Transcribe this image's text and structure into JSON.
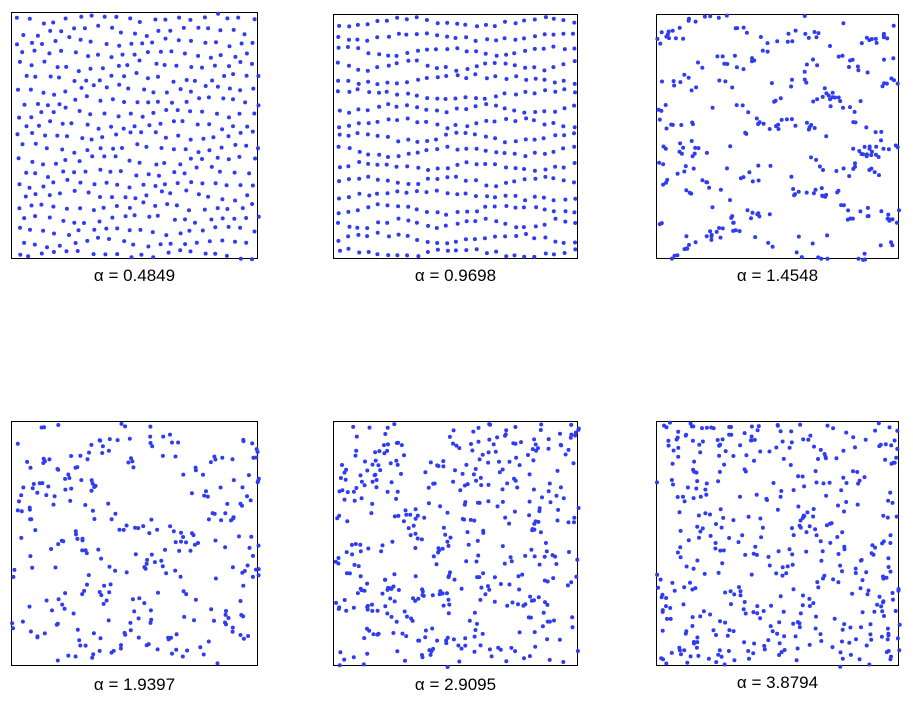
{
  "chart_data": [
    {
      "type": "scatter",
      "caption": "α = 0.4849",
      "pattern": "lattice",
      "n": 420,
      "marker_color": "#2f3cf0",
      "seed": 11
    },
    {
      "type": "scatter",
      "caption": "α = 0.9698",
      "pattern": "waves",
      "n": 420,
      "marker_color": "#2f3cf0",
      "seed": 23
    },
    {
      "type": "scatter",
      "caption": "α = 1.4548",
      "pattern": "clustered-waves",
      "n": 420,
      "marker_color": "#2f3cf0",
      "seed": 37
    },
    {
      "type": "scatter",
      "caption": "α = 1.9397",
      "pattern": "loose-waves",
      "n": 420,
      "marker_color": "#2f3cf0",
      "seed": 41
    },
    {
      "type": "scatter",
      "caption": "α = 2.9095",
      "pattern": "random",
      "n": 420,
      "marker_color": "#2f3cf0",
      "seed": 53
    },
    {
      "type": "scatter",
      "caption": "α = 3.8794",
      "pattern": "random",
      "n": 420,
      "marker_color": "#2f3cf0",
      "seed": 67
    }
  ]
}
